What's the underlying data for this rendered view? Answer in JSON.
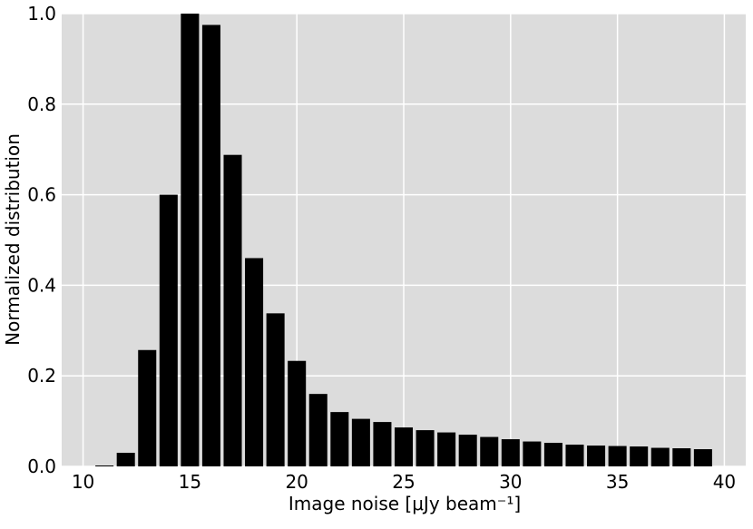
{
  "chart_data": {
    "type": "histogram",
    "xlabel": "Image noise [μJy beam⁻¹]",
    "ylabel": "Normalized distribution",
    "bins": [
      10.5,
      11.5,
      12.5,
      13.5,
      14.5,
      15.5,
      16.5,
      17.5,
      18.5,
      19.5,
      20.5,
      21.5,
      22.5,
      23.5,
      24.5,
      25.5,
      26.5,
      27.5,
      28.5,
      29.5,
      30.5,
      31.5,
      32.5,
      33.5,
      34.5,
      35.5,
      36.5,
      37.5,
      38.5,
      39.5
    ],
    "values": [
      0.002,
      0.03,
      0.257,
      0.6,
      1.0,
      0.975,
      0.688,
      0.46,
      0.338,
      0.233,
      0.16,
      0.12,
      0.105,
      0.098,
      0.086,
      0.08,
      0.075,
      0.07,
      0.065,
      0.06,
      0.055,
      0.052,
      0.048,
      0.046,
      0.045,
      0.044,
      0.041,
      0.04,
      0.038
    ],
    "color": "#000000",
    "xlim": [
      9,
      41
    ],
    "ylim": [
      0,
      1
    ],
    "xticks": [
      10,
      15,
      20,
      25,
      30,
      35,
      40
    ],
    "yticks": [
      {
        "value": 0,
        "label": "0.0"
      },
      0.2,
      0.4,
      0.6,
      0.8,
      {
        "value": 1,
        "label": "1.0"
      }
    ],
    "grid": true
  }
}
